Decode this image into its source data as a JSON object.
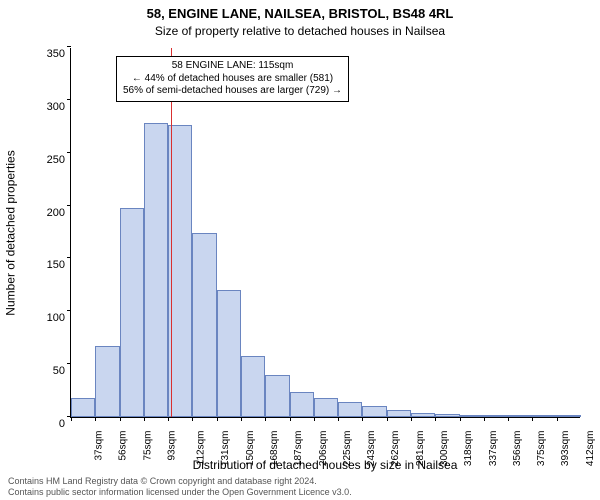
{
  "title_main": "58, ENGINE LANE, NAILSEA, BRISTOL, BS48 4RL",
  "title_sub": "Size of property relative to detached houses in Nailsea",
  "ylabel": "Number of detached properties",
  "xlabel": "Distribution of detached houses by size in Nailsea",
  "footer_line1": "Contains HM Land Registry data © Crown copyright and database right 2024.",
  "footer_line2": "Contains public sector information licensed under the Open Government Licence v3.0.",
  "chart": {
    "type": "histogram",
    "background_color": "#ffffff",
    "bar_fill": "#c9d6ef",
    "bar_border": "#6a85c0",
    "marker_color": "#d93030",
    "ylim": [
      0,
      350
    ],
    "ytick_step": 50,
    "bin_start": 37,
    "bin_width_sqm": 19,
    "bin_count": 21,
    "bar_values": [
      18,
      67,
      198,
      278,
      276,
      174,
      120,
      58,
      40,
      24,
      18,
      14,
      10,
      7,
      4,
      3,
      2,
      1,
      1,
      1,
      1
    ],
    "xtick_labels": [
      "37sqm",
      "56sqm",
      "75sqm",
      "93sqm",
      "112sqm",
      "131sqm",
      "150sqm",
      "168sqm",
      "187sqm",
      "206sqm",
      "225sqm",
      "243sqm",
      "262sqm",
      "281sqm",
      "300sqm",
      "318sqm",
      "337sqm",
      "356sqm",
      "375sqm",
      "393sqm",
      "412sqm"
    ],
    "marker_sqm": 115,
    "annotation": {
      "line1": "58 ENGINE LANE: 115sqm",
      "line2": "← 44% of detached houses are smaller (581)",
      "line3": "56% of semi-detached houses are larger (729) →"
    },
    "title_fontsize_pt": 13,
    "sub_fontsize_pt": 12,
    "label_fontsize_pt": 12,
    "tick_fontsize_pt": 11,
    "footer_fontsize_pt": 9
  }
}
